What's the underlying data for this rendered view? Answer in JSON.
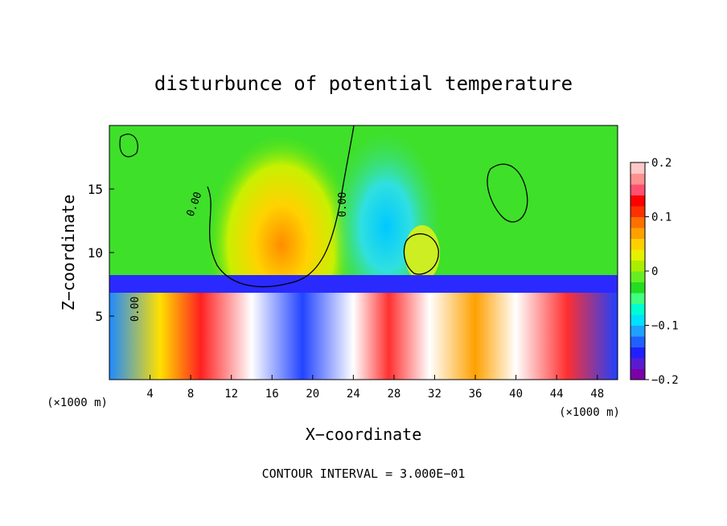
{
  "chart_data": {
    "type": "heatmap",
    "title": "disturbunce of potential temperature",
    "xlabel": "X−coordinate",
    "ylabel": "Z−coordinate",
    "x_unit_left": "(×1000 m)",
    "x_unit_right": "(×1000 m)",
    "xlim": [
      0,
      50
    ],
    "ylim": [
      0,
      20
    ],
    "x_ticks": [
      4,
      8,
      12,
      16,
      20,
      24,
      28,
      32,
      36,
      40,
      44,
      48
    ],
    "y_ticks": [
      5,
      10,
      15
    ],
    "contour_labels": [
      "0.00",
      "0.00",
      "0.00"
    ],
    "colorbar": {
      "min": -0.2,
      "max": 0.2,
      "tick_labels": [
        "0.2",
        "0.1",
        "0",
        "−0.1",
        "−0.2"
      ],
      "tick_values": [
        0.2,
        0.1,
        0,
        -0.1,
        -0.2
      ],
      "colors": [
        "#7a00a8",
        "#5a1bd0",
        "#2020ff",
        "#2060ff",
        "#20a0ff",
        "#00e0ff",
        "#00ffd0",
        "#40ff80",
        "#22dd22",
        "#66ee22",
        "#aaee00",
        "#e6f000",
        "#ffd000",
        "#ffa000",
        "#ff7000",
        "#ff3000",
        "#ff0000",
        "#ff5070",
        "#ff9090",
        "#ffc8c8"
      ]
    },
    "footer": "CONTOUR INTERVAL = 3.000E−01"
  }
}
